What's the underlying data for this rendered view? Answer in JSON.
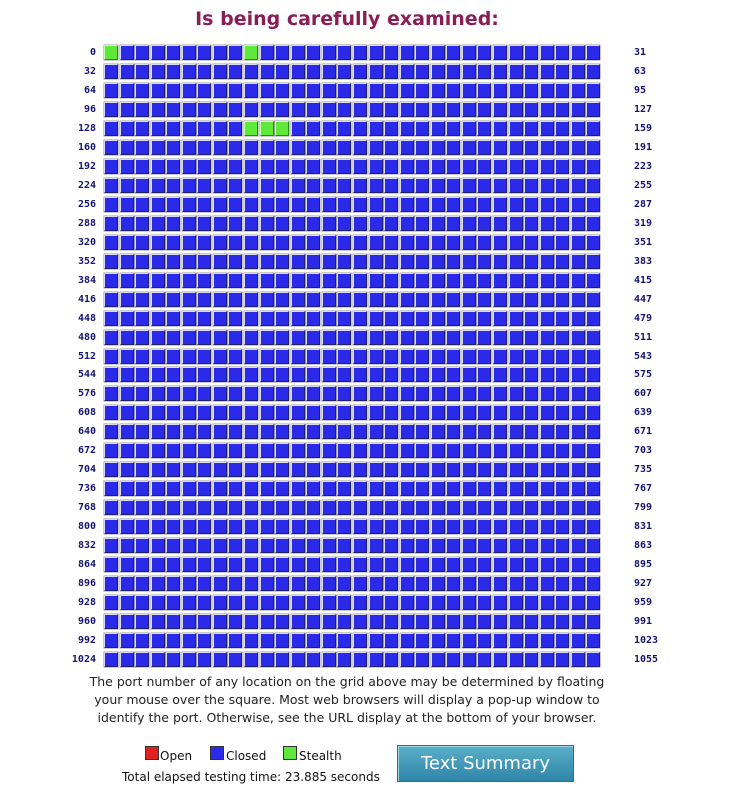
{
  "title": "Is being carefully examined:",
  "grid": {
    "columns": 32,
    "rows": [
      {
        "start": "0",
        "end": "31"
      },
      {
        "start": "32",
        "end": "63"
      },
      {
        "start": "64",
        "end": "95"
      },
      {
        "start": "96",
        "end": "127"
      },
      {
        "start": "128",
        "end": "159"
      },
      {
        "start": "160",
        "end": "191"
      },
      {
        "start": "192",
        "end": "223"
      },
      {
        "start": "224",
        "end": "255"
      },
      {
        "start": "256",
        "end": "287"
      },
      {
        "start": "288",
        "end": "319"
      },
      {
        "start": "320",
        "end": "351"
      },
      {
        "start": "352",
        "end": "383"
      },
      {
        "start": "384",
        "end": "415"
      },
      {
        "start": "416",
        "end": "447"
      },
      {
        "start": "448",
        "end": "479"
      },
      {
        "start": "480",
        "end": "511"
      },
      {
        "start": "512",
        "end": "543"
      },
      {
        "start": "544",
        "end": "575"
      },
      {
        "start": "576",
        "end": "607"
      },
      {
        "start": "608",
        "end": "639"
      },
      {
        "start": "640",
        "end": "671"
      },
      {
        "start": "672",
        "end": "703"
      },
      {
        "start": "704",
        "end": "735"
      },
      {
        "start": "736",
        "end": "767"
      },
      {
        "start": "768",
        "end": "799"
      },
      {
        "start": "800",
        "end": "831"
      },
      {
        "start": "832",
        "end": "863"
      },
      {
        "start": "864",
        "end": "895"
      },
      {
        "start": "896",
        "end": "927"
      },
      {
        "start": "928",
        "end": "959"
      },
      {
        "start": "960",
        "end": "991"
      },
      {
        "start": "992",
        "end": "1023"
      },
      {
        "start": "1024",
        "end": "1055"
      }
    ],
    "stealth_ports": [
      0,
      9,
      137,
      138,
      139
    ]
  },
  "note_lines": [
    "The port number of any location on the grid above may be determined by floating",
    "your mouse over the square. Most web browsers will display a pop-up window to",
    "identify the port. Otherwise, see the URL display at the bottom of your browser."
  ],
  "legend": {
    "open": "Open",
    "closed": "Closed",
    "stealth": "Stealth"
  },
  "elapsed": "Total elapsed testing time: 23.885 seconds",
  "button": "Text Summary"
}
